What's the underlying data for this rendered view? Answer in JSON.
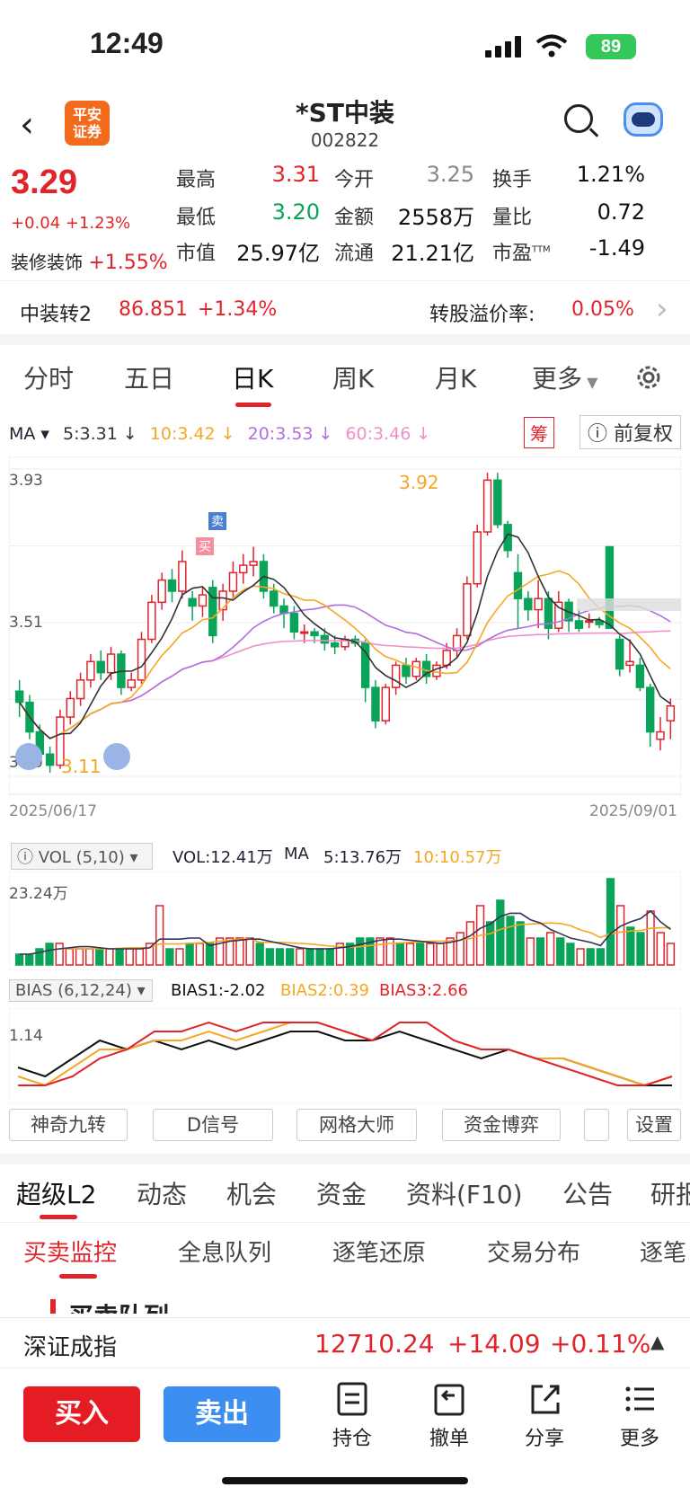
{
  "status": {
    "time": "12:49",
    "battery": "89"
  },
  "header": {
    "title": "*ST中装",
    "code": "002822",
    "logo_line1": "平安",
    "logo_line2": "证券"
  },
  "quote": {
    "price": "3.29",
    "change": "+0.04 +1.23%",
    "sector_name": "装修装饰",
    "sector_change": "+1.55%",
    "fields": [
      {
        "label": "最高",
        "value": "3.31",
        "color": "red"
      },
      {
        "label": "今开",
        "value": "3.25",
        "color": "gray"
      },
      {
        "label": "换手",
        "value": "1.21%",
        "color": "black"
      },
      {
        "label": "最低",
        "value": "3.20",
        "color": "green"
      },
      {
        "label": "金额",
        "value": "2558万",
        "color": "black"
      },
      {
        "label": "量比",
        "value": "0.72",
        "color": "black"
      },
      {
        "label": "市值",
        "value": "25.97亿",
        "color": "black"
      },
      {
        "label": "流通",
        "value": "21.21亿",
        "color": "black"
      },
      {
        "label": "市盈",
        "value": "-1.49",
        "color": "black",
        "sup": "TTM"
      }
    ]
  },
  "bond": {
    "name": "中装转2",
    "price": "86.851",
    "change": "+1.34%",
    "premium_label": "转股溢价率:",
    "premium_value": "0.05%"
  },
  "ktabs": [
    "分时",
    "五日",
    "日K",
    "周K",
    "月K",
    "更多"
  ],
  "ma": {
    "label": "MA",
    "items": [
      {
        "text": "5:3.31",
        "color": "#333333"
      },
      {
        "text": "10:3.42",
        "color": "#f5a623"
      },
      {
        "text": "20:3.53",
        "color": "#b06ee0"
      },
      {
        "text": "60:3.46",
        "color": "#f08fc8"
      }
    ],
    "chip_chip": "筹",
    "chip_adjust": "前复权"
  },
  "chart_data": [
    {
      "type": "candlestick",
      "title": "",
      "x_start": "2025/06/17",
      "x_end": "2025/09/01",
      "y_axis_labels": [
        "3.93",
        "3.51",
        "3.10"
      ],
      "ylim": [
        3.1,
        3.93
      ],
      "annotations": {
        "high": "3.92",
        "low": "3.11",
        "sell_marker": "卖",
        "buy_marker": "买"
      },
      "candles": [
        {
          "o": 3.33,
          "c": 3.3,
          "h": 3.36,
          "l": 3.26
        },
        {
          "o": 3.3,
          "c": 3.22,
          "h": 3.32,
          "l": 3.2
        },
        {
          "o": 3.22,
          "c": 3.16,
          "h": 3.24,
          "l": 3.14
        },
        {
          "o": 3.16,
          "c": 3.13,
          "h": 3.18,
          "l": 3.11
        },
        {
          "o": 3.13,
          "c": 3.26,
          "h": 3.28,
          "l": 3.12
        },
        {
          "o": 3.26,
          "c": 3.31,
          "h": 3.33,
          "l": 3.24
        },
        {
          "o": 3.31,
          "c": 3.36,
          "h": 3.38,
          "l": 3.29
        },
        {
          "o": 3.36,
          "c": 3.41,
          "h": 3.43,
          "l": 3.34
        },
        {
          "o": 3.41,
          "c": 3.38,
          "h": 3.44,
          "l": 3.36
        },
        {
          "o": 3.38,
          "c": 3.43,
          "h": 3.45,
          "l": 3.36
        },
        {
          "o": 3.43,
          "c": 3.34,
          "h": 3.44,
          "l": 3.32
        },
        {
          "o": 3.34,
          "c": 3.36,
          "h": 3.38,
          "l": 3.33
        },
        {
          "o": 3.36,
          "c": 3.47,
          "h": 3.49,
          "l": 3.35
        },
        {
          "o": 3.47,
          "c": 3.57,
          "h": 3.59,
          "l": 3.46
        },
        {
          "o": 3.57,
          "c": 3.63,
          "h": 3.65,
          "l": 3.55
        },
        {
          "o": 3.63,
          "c": 3.6,
          "h": 3.66,
          "l": 3.57
        },
        {
          "o": 3.6,
          "c": 3.68,
          "h": 3.71,
          "l": 3.58
        },
        {
          "o": 3.58,
          "c": 3.56,
          "h": 3.6,
          "l": 3.52
        },
        {
          "o": 3.56,
          "c": 3.59,
          "h": 3.61,
          "l": 3.53
        },
        {
          "o": 3.61,
          "c": 3.48,
          "h": 3.63,
          "l": 3.46
        },
        {
          "o": 3.55,
          "c": 3.6,
          "h": 3.62,
          "l": 3.52
        },
        {
          "o": 3.6,
          "c": 3.65,
          "h": 3.68,
          "l": 3.58
        },
        {
          "o": 3.65,
          "c": 3.67,
          "h": 3.7,
          "l": 3.62
        },
        {
          "o": 3.67,
          "c": 3.68,
          "h": 3.72,
          "l": 3.64
        },
        {
          "o": 3.68,
          "c": 3.6,
          "h": 3.7,
          "l": 3.58
        },
        {
          "o": 3.6,
          "c": 3.56,
          "h": 3.62,
          "l": 3.54
        },
        {
          "o": 3.56,
          "c": 3.54,
          "h": 3.58,
          "l": 3.5
        },
        {
          "o": 3.54,
          "c": 3.49,
          "h": 3.56,
          "l": 3.47
        },
        {
          "o": 3.49,
          "c": 3.49,
          "h": 3.51,
          "l": 3.46
        },
        {
          "o": 3.49,
          "c": 3.48,
          "h": 3.5,
          "l": 3.46
        },
        {
          "o": 3.48,
          "c": 3.46,
          "h": 3.5,
          "l": 3.44
        },
        {
          "o": 3.46,
          "c": 3.45,
          "h": 3.48,
          "l": 3.43
        },
        {
          "o": 3.45,
          "c": 3.47,
          "h": 3.48,
          "l": 3.44
        },
        {
          "o": 3.47,
          "c": 3.46,
          "h": 3.48,
          "l": 3.45
        },
        {
          "o": 3.46,
          "c": 3.34,
          "h": 3.47,
          "l": 3.3
        },
        {
          "o": 3.34,
          "c": 3.25,
          "h": 3.36,
          "l": 3.23
        },
        {
          "o": 3.25,
          "c": 3.34,
          "h": 3.35,
          "l": 3.24
        },
        {
          "o": 3.34,
          "c": 3.4,
          "h": 3.41,
          "l": 3.32
        },
        {
          "o": 3.4,
          "c": 3.37,
          "h": 3.42,
          "l": 3.35
        },
        {
          "o": 3.37,
          "c": 3.41,
          "h": 3.42,
          "l": 3.36
        },
        {
          "o": 3.41,
          "c": 3.37,
          "h": 3.43,
          "l": 3.35
        },
        {
          "o": 3.37,
          "c": 3.4,
          "h": 3.41,
          "l": 3.36
        },
        {
          "o": 3.4,
          "c": 3.44,
          "h": 3.46,
          "l": 3.39
        },
        {
          "o": 3.44,
          "c": 3.48,
          "h": 3.5,
          "l": 3.42
        },
        {
          "o": 3.48,
          "c": 3.62,
          "h": 3.64,
          "l": 3.47
        },
        {
          "o": 3.62,
          "c": 3.76,
          "h": 3.78,
          "l": 3.61
        },
        {
          "o": 3.76,
          "c": 3.9,
          "h": 3.92,
          "l": 3.75
        },
        {
          "o": 3.9,
          "c": 3.78,
          "h": 3.92,
          "l": 3.77
        },
        {
          "o": 3.78,
          "c": 3.71,
          "h": 3.79,
          "l": 3.69
        },
        {
          "o": 3.65,
          "c": 3.58,
          "h": 3.7,
          "l": 3.5
        },
        {
          "o": 3.58,
          "c": 3.55,
          "h": 3.6,
          "l": 3.52
        },
        {
          "o": 3.55,
          "c": 3.58,
          "h": 3.63,
          "l": 3.5
        },
        {
          "o": 3.58,
          "c": 3.5,
          "h": 3.6,
          "l": 3.47
        },
        {
          "o": 3.5,
          "c": 3.57,
          "h": 3.6,
          "l": 3.49
        },
        {
          "o": 3.57,
          "c": 3.52,
          "h": 3.58,
          "l": 3.49
        },
        {
          "o": 3.52,
          "c": 3.5,
          "h": 3.55,
          "l": 3.49
        },
        {
          "o": 3.52,
          "c": 3.52,
          "h": 3.54,
          "l": 3.5
        },
        {
          "o": 3.52,
          "c": 3.51,
          "h": 3.53,
          "l": 3.5
        },
        {
          "o": 3.72,
          "c": 3.5,
          "h": 3.72,
          "l": 3.5
        },
        {
          "o": 3.47,
          "c": 3.39,
          "h": 3.48,
          "l": 3.37
        },
        {
          "o": 3.4,
          "c": 3.41,
          "h": 3.47,
          "l": 3.38
        },
        {
          "o": 3.4,
          "c": 3.34,
          "h": 3.42,
          "l": 3.33
        },
        {
          "o": 3.34,
          "c": 3.22,
          "h": 3.35,
          "l": 3.18
        },
        {
          "o": 3.2,
          "c": 3.22,
          "h": 3.26,
          "l": 3.17
        },
        {
          "o": 3.25,
          "c": 3.29,
          "h": 3.31,
          "l": 3.2
        }
      ]
    },
    {
      "type": "bar",
      "title": "",
      "label": "VOL (5,10)",
      "y_label": "23.24万",
      "values": [
        2,
        2,
        3,
        4,
        4,
        3,
        3,
        3,
        3,
        3,
        3,
        3,
        3,
        4,
        11,
        3,
        3,
        4,
        4,
        4,
        5,
        5,
        5,
        5,
        4,
        3,
        3,
        3,
        3,
        3,
        3,
        3,
        4,
        4,
        5,
        5,
        5,
        5,
        4,
        4,
        4,
        4,
        4,
        5,
        6,
        8,
        11,
        8,
        12,
        9,
        8,
        5,
        5,
        6,
        5,
        4,
        3,
        3,
        3,
        16,
        11,
        7,
        6,
        10,
        6,
        4
      ]
    },
    {
      "type": "line",
      "title": "",
      "label": "BIAS (6,12,24)",
      "y_label": "1.14",
      "series": [
        {
          "name": "BIAS1",
          "values": [
            3,
            2,
            4,
            6,
            5,
            6,
            5,
            6,
            5,
            6,
            7,
            7,
            6,
            6,
            7,
            6,
            5,
            4,
            5,
            4,
            4,
            3,
            2,
            1,
            1
          ]
        },
        {
          "name": "BIAS2",
          "values": [
            2,
            1,
            3,
            5,
            5,
            6,
            6,
            7,
            6,
            7,
            8,
            8,
            7,
            6,
            8,
            8,
            6,
            5,
            5,
            4,
            4,
            3,
            2,
            1,
            2
          ]
        },
        {
          "name": "BIAS3",
          "values": [
            1,
            1,
            2,
            4,
            5,
            7,
            7,
            8,
            7,
            8,
            8,
            8,
            7,
            6,
            8,
            8,
            6,
            5,
            5,
            4,
            3,
            2,
            1,
            1,
            2
          ]
        }
      ]
    }
  ],
  "vol_bar": {
    "label": "VOL (5,10)",
    "vol": "VOL:12.41万",
    "ma": "MA",
    "ma5": "5:13.76万",
    "ma10": "10:10.57万"
  },
  "bias_bar": {
    "label": "BIAS (6,12,24)",
    "bias1": "BIAS1:-2.02",
    "bias2": "BIAS2:0.39",
    "bias3": "BIAS3:2.66"
  },
  "tools": [
    "神奇九转",
    "D信号",
    "网格大师",
    "资金博弈",
    "",
    "设置"
  ],
  "section_tabs": [
    "超级L2",
    "动态",
    "机会",
    "资金",
    "资料(F10)",
    "公告",
    "研报"
  ],
  "sub_tabs": [
    "买卖监控",
    "全息队列",
    "逐笔还原",
    "交易分布",
    "逐笔"
  ],
  "partial_heading": "买卖队列",
  "index": {
    "name": "深证成指",
    "value": "12710.24",
    "change": "+14.09",
    "pct": "+0.11%"
  },
  "actions": {
    "buy": "买入",
    "sell": "卖出",
    "items": [
      "持仓",
      "撤单",
      "分享",
      "更多"
    ]
  }
}
